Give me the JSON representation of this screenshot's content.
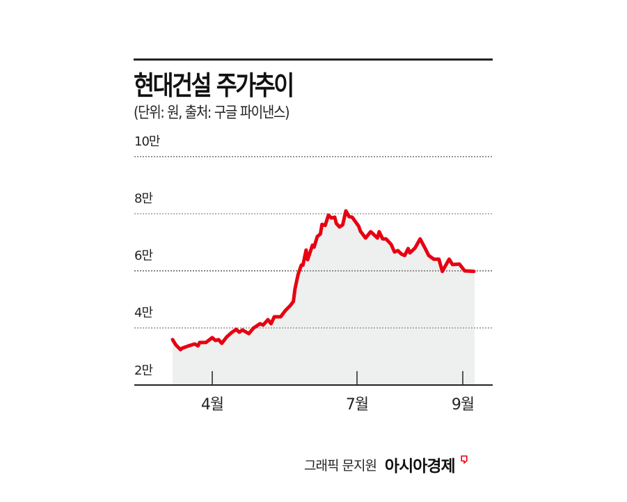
{
  "header": {
    "title": "현대건설 주가추이",
    "subtitle": "(단위: 원, 출처: 구글 파이낸스)"
  },
  "footer": {
    "credit": "그래픽 문지원",
    "publisher": "아시아경제",
    "logo_icon": "publisher-logo-icon"
  },
  "colors": {
    "line": "#e60012",
    "fill": "#eeefef",
    "axis": "#222222",
    "grid": "#666666"
  },
  "chart_data": {
    "type": "line",
    "title": "현대건설 주가추이",
    "subtitle": "(단위: 원, 출처: 구글 파이낸스)",
    "xlabel": "",
    "ylabel": "",
    "unit": "원",
    "source": "구글 파이낸스",
    "ylim": [
      20000,
      100000
    ],
    "grid": true,
    "legend": null,
    "y_ticks": [
      {
        "label": "10만",
        "value": 100000
      },
      {
        "label": "8만",
        "value": 80000
      },
      {
        "label": "6만",
        "value": 60000
      },
      {
        "label": "4만",
        "value": 40000
      },
      {
        "label": "2만",
        "value": 20000
      }
    ],
    "x_ticks": [
      {
        "label": "4월",
        "date": "04-01"
      },
      {
        "label": "7월",
        "date": "07-01"
      },
      {
        "label": "9월",
        "date": "09-01"
      }
    ],
    "series": [
      {
        "name": "현대건설",
        "points": [
          {
            "date": "03-07",
            "value": 35900
          },
          {
            "date": "03-09",
            "value": 34100
          },
          {
            "date": "03-12",
            "value": 32400
          },
          {
            "date": "03-13",
            "value": 32900
          },
          {
            "date": "03-17",
            "value": 33700
          },
          {
            "date": "03-21",
            "value": 34400
          },
          {
            "date": "03-23",
            "value": 33700
          },
          {
            "date": "03-24",
            "value": 34900
          },
          {
            "date": "03-28",
            "value": 34900
          },
          {
            "date": "04-01",
            "value": 36600
          },
          {
            "date": "04-03",
            "value": 35600
          },
          {
            "date": "04-05",
            "value": 35900
          },
          {
            "date": "04-07",
            "value": 34600
          },
          {
            "date": "04-10",
            "value": 36800
          },
          {
            "date": "04-13",
            "value": 38300
          },
          {
            "date": "04-16",
            "value": 39500
          },
          {
            "date": "04-18",
            "value": 38500
          },
          {
            "date": "04-20",
            "value": 39300
          },
          {
            "date": "04-24",
            "value": 38000
          },
          {
            "date": "04-27",
            "value": 40000
          },
          {
            "date": "04-29",
            "value": 40700
          },
          {
            "date": "05-01",
            "value": 41500
          },
          {
            "date": "05-03",
            "value": 41000
          },
          {
            "date": "05-06",
            "value": 42900
          },
          {
            "date": "05-08",
            "value": 41500
          },
          {
            "date": "05-10",
            "value": 43900
          },
          {
            "date": "05-14",
            "value": 43900
          },
          {
            "date": "05-17",
            "value": 46100
          },
          {
            "date": "05-20",
            "value": 47800
          },
          {
            "date": "05-22",
            "value": 49300
          },
          {
            "date": "05-23",
            "value": 53700
          },
          {
            "date": "05-25",
            "value": 58800
          },
          {
            "date": "05-27",
            "value": 62000
          },
          {
            "date": "05-28",
            "value": 62000
          },
          {
            "date": "05-30",
            "value": 67300
          },
          {
            "date": "05-31",
            "value": 63900
          },
          {
            "date": "06-03",
            "value": 69000
          },
          {
            "date": "06-04",
            "value": 68300
          },
          {
            "date": "06-06",
            "value": 72000
          },
          {
            "date": "06-08",
            "value": 72900
          },
          {
            "date": "06-09",
            "value": 76300
          },
          {
            "date": "06-11",
            "value": 75900
          },
          {
            "date": "06-13",
            "value": 79500
          },
          {
            "date": "06-15",
            "value": 78500
          },
          {
            "date": "06-17",
            "value": 78800
          },
          {
            "date": "06-18",
            "value": 76600
          },
          {
            "date": "06-20",
            "value": 75400
          },
          {
            "date": "06-22",
            "value": 76100
          },
          {
            "date": "06-24",
            "value": 81000
          },
          {
            "date": "06-26",
            "value": 79000
          },
          {
            "date": "06-28",
            "value": 78800
          },
          {
            "date": "07-02",
            "value": 75600
          },
          {
            "date": "07-03",
            "value": 73900
          },
          {
            "date": "07-06",
            "value": 71500
          },
          {
            "date": "07-09",
            "value": 73700
          },
          {
            "date": "07-10",
            "value": 73200
          },
          {
            "date": "07-13",
            "value": 71500
          },
          {
            "date": "07-14",
            "value": 73700
          },
          {
            "date": "07-16",
            "value": 71200
          },
          {
            "date": "07-18",
            "value": 71200
          },
          {
            "date": "07-21",
            "value": 69300
          },
          {
            "date": "07-23",
            "value": 66600
          },
          {
            "date": "07-25",
            "value": 67100
          },
          {
            "date": "07-27",
            "value": 65900
          },
          {
            "date": "07-29",
            "value": 65400
          },
          {
            "date": "07-31",
            "value": 67800
          },
          {
            "date": "08-01",
            "value": 66300
          },
          {
            "date": "08-04",
            "value": 68000
          },
          {
            "date": "08-07",
            "value": 71200
          },
          {
            "date": "08-10",
            "value": 67800
          },
          {
            "date": "08-12",
            "value": 65400
          },
          {
            "date": "08-15",
            "value": 64100
          },
          {
            "date": "08-18",
            "value": 64100
          },
          {
            "date": "08-20",
            "value": 59800
          },
          {
            "date": "08-24",
            "value": 64100
          },
          {
            "date": "08-26",
            "value": 62200
          },
          {
            "date": "08-30",
            "value": 62400
          },
          {
            "date": "09-02",
            "value": 60000
          },
          {
            "date": "09-07",
            "value": 59800
          }
        ]
      }
    ]
  }
}
